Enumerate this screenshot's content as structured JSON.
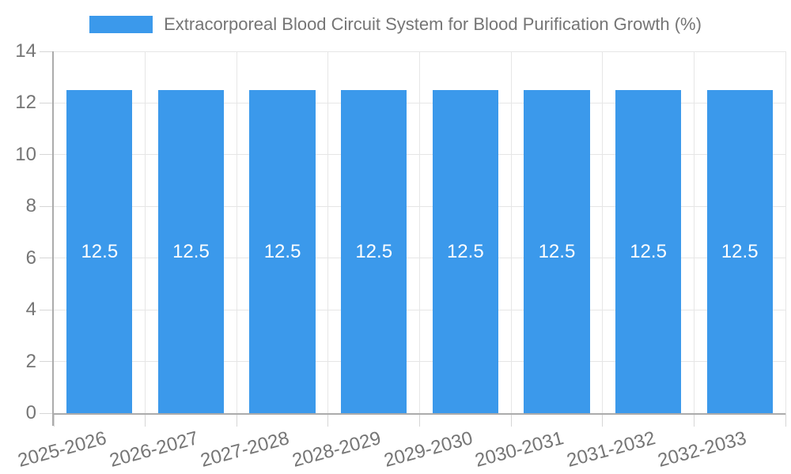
{
  "chart_data": {
    "type": "bar",
    "title": "Extracorporeal Blood Circuit System for Blood Purification Growth (%)",
    "categories": [
      "2025-2026",
      "2026-2027",
      "2027-2028",
      "2028-2029",
      "2029-2030",
      "2030-2031",
      "2031-2032",
      "2032-2033"
    ],
    "series": [
      {
        "name": "Extracorporeal Blood Circuit System for Blood Purification Growth (%)",
        "values": [
          12.5,
          12.5,
          12.5,
          12.5,
          12.5,
          12.5,
          12.5,
          12.5
        ]
      }
    ],
    "value_labels": [
      "12.5",
      "12.5",
      "12.5",
      "12.5",
      "12.5",
      "12.5",
      "12.5",
      "12.5"
    ],
    "xlabel": "",
    "ylabel": "",
    "ylim": [
      0,
      14
    ],
    "yticks": [
      0,
      2,
      4,
      6,
      8,
      10,
      12,
      14
    ],
    "grid": true,
    "legend_position": "top-center",
    "x_label_rotation_deg": -15,
    "colors": {
      "bar": "#3B99EB",
      "bar_label": "#FFFFFF",
      "axis_text": "#757575",
      "grid_line": "#E6E6E6",
      "tick_mark": "#D6D6D6",
      "axis_line": "#ABABAB",
      "background": "#FFFFFF"
    }
  }
}
